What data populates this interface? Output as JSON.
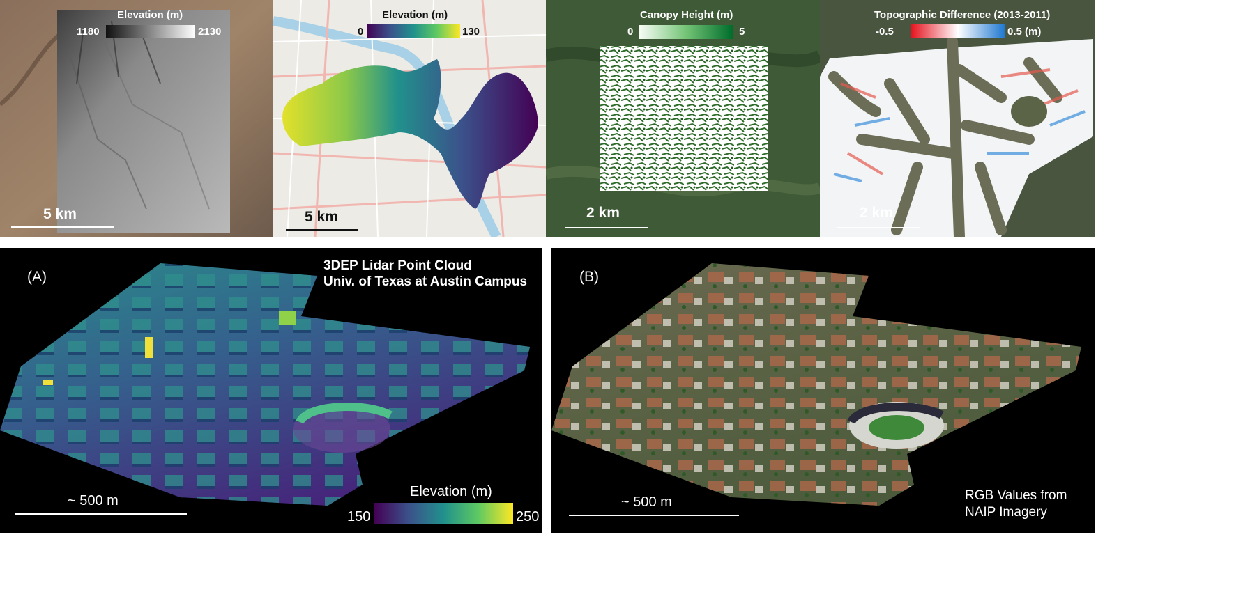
{
  "top_panels": {
    "p1": {
      "legend_title": "Elevation (m)",
      "min": "1180",
      "max": "2130",
      "scale": "5 km"
    },
    "p2": {
      "legend_title": "Elevation (m)",
      "min": "0",
      "max": "130",
      "scale": "5 km"
    },
    "p3": {
      "legend_title": "Canopy Height (m)",
      "min": "0",
      "max": "5",
      "scale": "2 km"
    },
    "p4": {
      "legend_title": "Topographic Difference (2013-2011)",
      "min": "-0.5",
      "max": "0.5 (m)",
      "scale": "2 km"
    }
  },
  "bottom_panels": {
    "a": {
      "label": "(A)",
      "title_line1": "3DEP Lidar Point Cloud",
      "title_line2": "Univ. of Texas at Austin Campus",
      "scale": "~ 500 m",
      "legend_title": "Elevation (m)",
      "min": "150",
      "max": "250"
    },
    "b": {
      "label": "(B)",
      "scale": "~ 500 m",
      "caption_line1": "RGB Values from",
      "caption_line2": "NAIP Imagery"
    }
  },
  "colors": {
    "viridis": [
      "#440154",
      "#3b528b",
      "#21918c",
      "#5ec962",
      "#fde725"
    ],
    "greens": [
      "#f7fcf5",
      "#74c476",
      "#006d2c"
    ],
    "diverging": [
      "#e6141f",
      "#ffffff",
      "#1f78d1"
    ],
    "grays": [
      "#111111",
      "#ffffff"
    ]
  }
}
